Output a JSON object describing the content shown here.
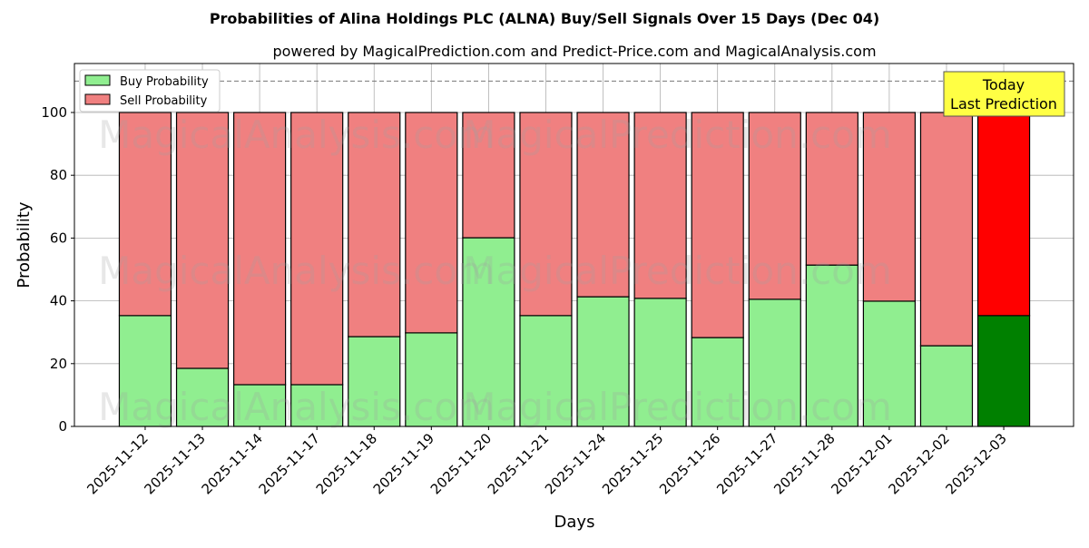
{
  "chart_data": {
    "type": "bar",
    "stacked": true,
    "title": "Probabilities of Alina Holdings PLC (ALNA) Buy/Sell Signals Over 15 Days (Dec 04)",
    "subtitle": "powered by MagicalPrediction.com and Predict-Price.com and MagicalAnalysis.com",
    "xlabel": "Days",
    "ylabel": "Probability",
    "ylim": [
      0,
      115.6
    ],
    "yticks": [
      0,
      20,
      40,
      60,
      80,
      100
    ],
    "categories": [
      "2025-11-12",
      "2025-11-13",
      "2025-11-14",
      "2025-11-17",
      "2025-11-18",
      "2025-11-19",
      "2025-11-20",
      "2025-11-21",
      "2025-11-24",
      "2025-11-25",
      "2025-11-26",
      "2025-11-27",
      "2025-11-28",
      "2025-12-01",
      "2025-12-02",
      "2025-12-03"
    ],
    "series": [
      {
        "name": "Buy Probability",
        "color": "#90ee90",
        "highlight_color": "#008000",
        "values": [
          35.3,
          18.5,
          13.3,
          13.3,
          28.6,
          29.8,
          60.1,
          35.3,
          41.3,
          40.8,
          28.3,
          40.5,
          51.4,
          39.9,
          25.7,
          35.3
        ]
      },
      {
        "name": "Sell Probability",
        "color": "#f08080",
        "highlight_color": "#ff0000",
        "values": [
          64.7,
          81.5,
          86.7,
          86.7,
          71.4,
          70.2,
          39.9,
          64.7,
          58.7,
          59.2,
          71.7,
          59.5,
          48.6,
          60.1,
          74.3,
          64.7
        ]
      }
    ],
    "reference_line": 110,
    "legend_position": "top-left",
    "annotation": {
      "line1": "Today",
      "line2": "Last Prediction"
    },
    "watermarks": [
      "MagicalAnalysis.com",
      "MagicalPrediction.com"
    ]
  }
}
